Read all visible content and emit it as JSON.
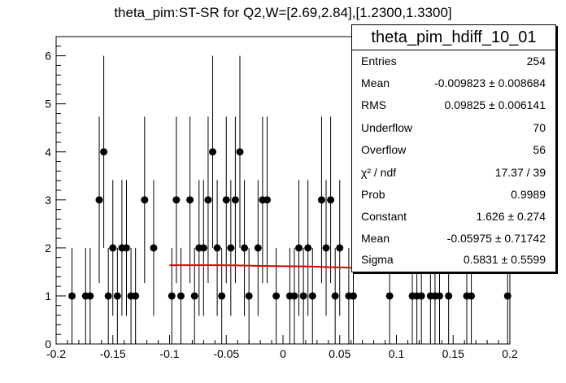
{
  "chart_data": {
    "type": "scatter",
    "title": "theta_pim:ST-SR for Q2,W=[2.69,2.84],[1.2300,1.3300]",
    "xlim": [
      -0.2,
      0.2
    ],
    "ylim": [
      0,
      6.4
    ],
    "x_ticks": [
      "-0.2",
      "-0.15",
      "-0.1",
      "-0.05",
      "0",
      "0.05",
      "0.1",
      "0.15",
      "0.2"
    ],
    "y_ticks": [
      "0",
      "1",
      "2",
      "3",
      "4",
      "5",
      "6"
    ],
    "series": [
      {
        "x": [
          -0.186,
          -0.174,
          -0.17,
          -0.162,
          -0.158,
          -0.154,
          -0.15,
          -0.146,
          -0.142,
          -0.138,
          -0.134,
          -0.13,
          -0.122,
          -0.114,
          -0.098,
          -0.094,
          -0.09,
          -0.082,
          -0.078,
          -0.074,
          -0.07,
          -0.066,
          -0.062,
          -0.058,
          -0.054,
          -0.05,
          -0.046,
          -0.042,
          -0.038,
          -0.034,
          -0.03,
          -0.022,
          -0.018,
          -0.014,
          -0.006,
          0.006,
          0.01,
          0.014,
          0.018,
          0.022,
          0.026,
          0.034,
          0.038,
          0.042,
          0.046,
          0.05,
          0.058,
          0.062,
          0.094,
          0.114,
          0.118,
          0.122,
          0.13,
          0.134,
          0.138,
          0.146,
          0.162,
          0.166,
          0.198
        ],
        "y": [
          1,
          1,
          1,
          3,
          4,
          1,
          2,
          1,
          2,
          2,
          1,
          1,
          3,
          2,
          1,
          3,
          1,
          3,
          1,
          2,
          2,
          3,
          4,
          2,
          1,
          3,
          2,
          3,
          4,
          2,
          1,
          2,
          3,
          3,
          1,
          1,
          1,
          2,
          1,
          2,
          1,
          3,
          2,
          3,
          1,
          2,
          1,
          1,
          1,
          1,
          1,
          1,
          1,
          1,
          1,
          1,
          1,
          1,
          1
        ]
      }
    ],
    "fit_line": {
      "color": "#dd0000",
      "x": [
        -0.1,
        -0.08,
        -0.06,
        -0.04,
        -0.02,
        0.0,
        0.02,
        0.04,
        0.06,
        0.062
      ],
      "y": [
        1.64,
        1.64,
        1.64,
        1.635,
        1.625,
        1.62,
        1.615,
        1.6,
        1.59,
        1.59
      ]
    },
    "stats": {
      "name": "theta_pim_hdiff_10_01",
      "rows": [
        {
          "label": "Entries",
          "value": "254"
        },
        {
          "label": "Mean",
          "value": "-0.009823 ± 0.008684"
        },
        {
          "label": "RMS",
          "value": "0.09825 ± 0.006141"
        },
        {
          "label": "Underflow",
          "value": "70"
        },
        {
          "label": "Overflow",
          "value": "56"
        },
        {
          "label": "χ² / ndf",
          "value": "17.37 / 39"
        },
        {
          "label": "Prob",
          "value": "0.9989"
        },
        {
          "label": "Constant",
          "value": "1.626 ± 0.274"
        },
        {
          "label": "Mean",
          "value": "-0.05975 ± 0.71742"
        },
        {
          "label": "Sigma",
          "value": "0.5831 ± 0.5599"
        }
      ]
    }
  }
}
